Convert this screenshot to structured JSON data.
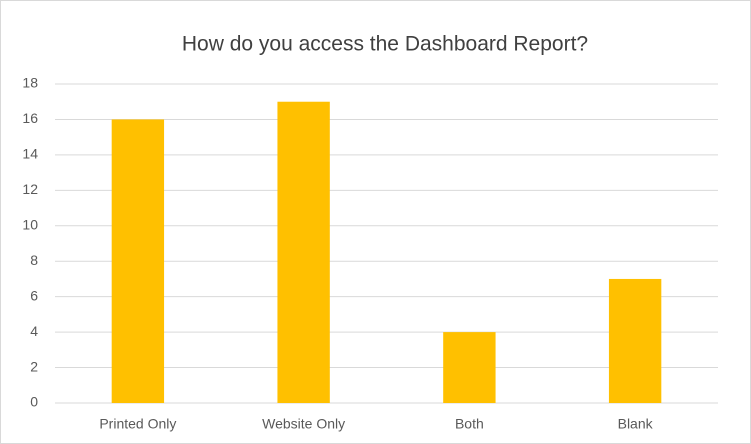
{
  "chart_data": {
    "type": "bar",
    "title": "How do you access the Dashboard Report?",
    "categories": [
      "Printed Only",
      "Website Only",
      "Both",
      "Blank"
    ],
    "values": [
      16,
      17,
      4,
      7
    ],
    "color": "#ffc000",
    "ylim": [
      0,
      18
    ],
    "yticks": [
      0,
      2,
      4,
      6,
      8,
      10,
      12,
      14,
      16,
      18
    ],
    "grid": true
  }
}
